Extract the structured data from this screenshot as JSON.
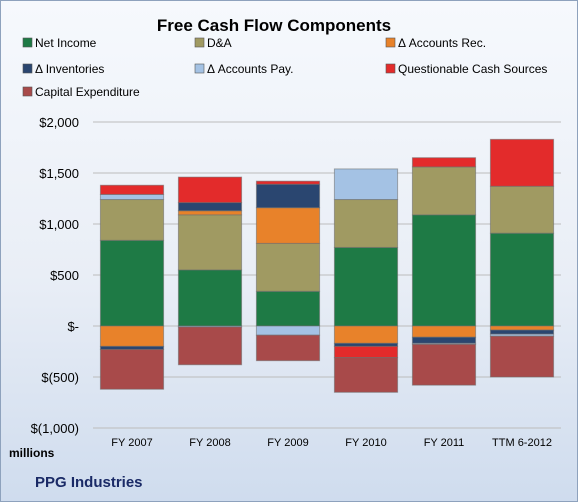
{
  "chart_data": {
    "type": "bar",
    "stacked": true,
    "title": "Free Cash Flow Components",
    "categories": [
      "FY 2007",
      "FY 2008",
      "FY 2009",
      "FY 2010",
      "FY 2011",
      "TTM 6-2012"
    ],
    "ylim": [
      -1000,
      2000
    ],
    "yticks": [
      {
        "value": 2000,
        "label": "$2,000"
      },
      {
        "value": 1500,
        "label": "$1,500"
      },
      {
        "value": 1000,
        "label": "$1,000"
      },
      {
        "value": 500,
        "label": "$500"
      },
      {
        "value": 0,
        "label": "$-"
      },
      {
        "value": -500,
        "label": "$(500)"
      },
      {
        "value": -1000,
        "label": "$(1,000)"
      }
    ],
    "unit_label": "millions",
    "grid": true,
    "legend_position": "top",
    "series": [
      {
        "name": "Net Income",
        "color": "#1e7a45",
        "values": [
          840,
          550,
          340,
          770,
          1090,
          910
        ]
      },
      {
        "name": "D&A",
        "color": "#a09a62",
        "values": [
          400,
          540,
          470,
          470,
          470,
          460
        ]
      },
      {
        "name": "Δ Accounts Rec.",
        "color": "#e8822a",
        "values": [
          -200,
          40,
          350,
          -170,
          -110,
          -40
        ]
      },
      {
        "name": "Δ Inventories",
        "color": "#2a4670",
        "values": [
          -30,
          80,
          230,
          -30,
          -60,
          -40
        ]
      },
      {
        "name": "Δ Accounts Pay.",
        "color": "#a4c2e4",
        "values": [
          50,
          -10,
          -90,
          300,
          -10,
          -20
        ]
      },
      {
        "name": "Questionable Cash Sources",
        "color": "#e32b2b",
        "values": [
          90,
          250,
          30,
          -110,
          90,
          460
        ]
      },
      {
        "name": "Capital Expenditure",
        "color": "#a84a4a",
        "values": [
          -390,
          -370,
          -250,
          -340,
          -400,
          -400
        ]
      }
    ]
  },
  "footer": {
    "company": "PPG Industries"
  }
}
